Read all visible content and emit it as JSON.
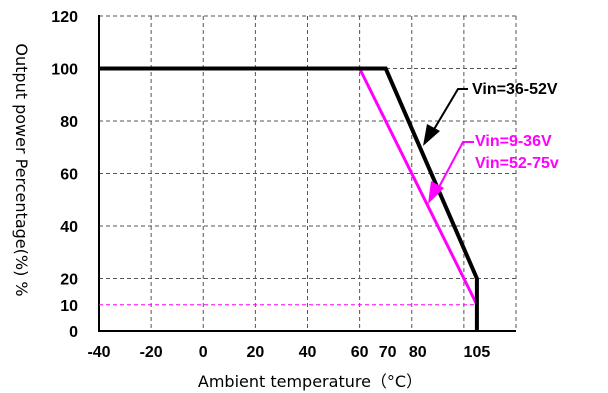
{
  "chart_data": {
    "type": "line",
    "title": "",
    "xlabel": "Ambient temperature（°C）",
    "ylabel": "Output power Percentage(%) %",
    "xlim": [
      -40,
      120
    ],
    "ylim": [
      0,
      120
    ],
    "xticks": [
      -40,
      -20,
      0,
      20,
      40,
      60,
      70,
      80,
      105
    ],
    "xtick_labels": [
      "-40",
      "-20",
      "0",
      "20",
      "40",
      "60",
      "70",
      "80",
      "105"
    ],
    "yticks": [
      0,
      10,
      20,
      40,
      60,
      80,
      100,
      120
    ],
    "ytick_labels": [
      "0",
      "10",
      "20",
      "40",
      "60",
      "80",
      "100",
      "120"
    ],
    "gridlines_x": [
      -40,
      -20,
      0,
      20,
      40,
      60,
      80,
      100,
      120
    ],
    "gridlines_y": [
      20,
      40,
      60,
      80,
      100,
      120
    ],
    "grid": true,
    "series": [
      {
        "name": "Vin=36-52V",
        "color": "#000000",
        "x": [
          -40,
          70,
          105,
          105
        ],
        "y": [
          100,
          100,
          20,
          0
        ]
      },
      {
        "name": "Vin=9-36V / Vin=52-75v",
        "color": "#ff00ff",
        "x": [
          60,
          105
        ],
        "y": [
          100,
          10
        ]
      }
    ],
    "reference_lines": [
      {
        "y": 10,
        "color": "#ff00ff",
        "style": "dashed"
      }
    ],
    "annotations": [
      {
        "text": "Vin=36-52V",
        "color": "#000000",
        "points_to": {
          "x": 88,
          "y": 73
        }
      },
      {
        "text": "Vin=9-36V",
        "color": "#ff00ff",
        "points_to": {
          "x": 86,
          "y": 58
        }
      },
      {
        "text": "Vin=52-75v",
        "color": "#ff00ff"
      }
    ]
  }
}
